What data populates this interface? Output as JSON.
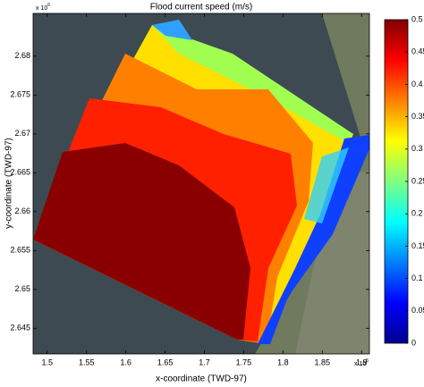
{
  "chart_data": {
    "type": "heatmap",
    "title": "Flood current speed (m/s)",
    "xlabel": "x-coordinate (TWD-97)",
    "ylabel": "y-coordinate (TWD-97)",
    "x_offset_label": "x 10",
    "x_offset_exponent": "5",
    "y_offset_label": "x 10",
    "y_offset_exponent": "6",
    "xlim": [
      1.482,
      1.91
    ],
    "xticks": [
      1.5,
      1.55,
      1.6,
      1.65,
      1.7,
      1.75,
      1.8,
      1.85,
      1.9
    ],
    "ylim": [
      2.6417,
      2.6855
    ],
    "yticks": [
      2.645,
      2.65,
      2.655,
      2.66,
      2.665,
      2.67,
      2.675,
      2.68
    ],
    "colorbar_lim": [
      0,
      0.5
    ],
    "colorbar_ticks": [
      0,
      0.05,
      0.1,
      0.15,
      0.2,
      0.25,
      0.3,
      0.35,
      0.4,
      0.45,
      0.5
    ],
    "colormap": "jet"
  }
}
